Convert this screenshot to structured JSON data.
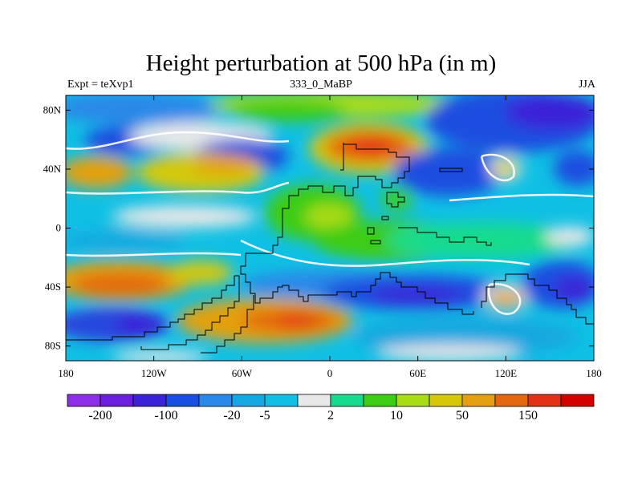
{
  "title": "Height perturbation at 500 hPa (in m)",
  "left_string": "Expt = teXvp1",
  "center_string": "333_0_MaBP",
  "right_string": "JJA",
  "map": {
    "lon_range": [
      -180,
      180
    ],
    "lat_range": [
      -90,
      90
    ],
    "x_ticks": [
      {
        "value": -180,
        "label": "180"
      },
      {
        "value": -120,
        "label": "120W"
      },
      {
        "value": -60,
        "label": "60W"
      },
      {
        "value": 0,
        "label": "0"
      },
      {
        "value": 60,
        "label": "60E"
      },
      {
        "value": 120,
        "label": "120E"
      },
      {
        "value": 180,
        "label": "180"
      }
    ],
    "y_ticks": [
      {
        "value": 80,
        "label": "80N"
      },
      {
        "value": 40,
        "label": "40N"
      },
      {
        "value": 0,
        "label": "0"
      },
      {
        "value": -40,
        "label": "40S"
      },
      {
        "value": -80,
        "label": "80S"
      }
    ]
  },
  "colorbar": {
    "colors": [
      "#8c2ee8",
      "#6a1ee0",
      "#3a22d8",
      "#1a4ee0",
      "#2a88e8",
      "#14a8e0",
      "#10c0e4",
      "#e8e8e8",
      "#14dc8c",
      "#3ccc14",
      "#aadc14",
      "#d4c808",
      "#e4a010",
      "#e46810",
      "#e43018",
      "#d40000"
    ],
    "labels": [
      {
        "after_box": 1,
        "text": "-200"
      },
      {
        "after_box": 3,
        "text": "-100"
      },
      {
        "after_box": 5,
        "text": "-20"
      },
      {
        "after_box": 6,
        "text": "-5"
      },
      {
        "after_box": 8,
        "text": "2"
      },
      {
        "after_box": 10,
        "text": "10"
      },
      {
        "after_box": 12,
        "text": "50"
      },
      {
        "after_box": 14,
        "text": "150"
      }
    ]
  }
}
